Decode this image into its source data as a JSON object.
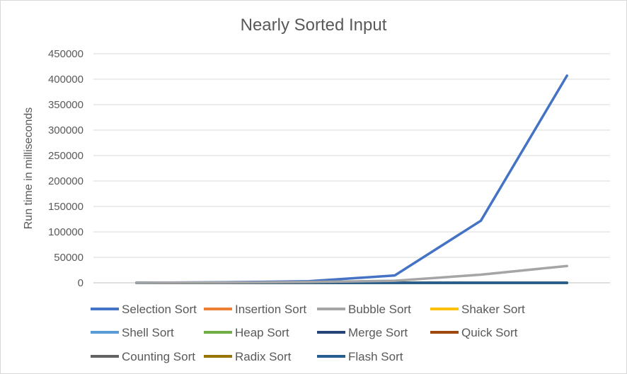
{
  "chart_data": {
    "type": "line",
    "title": "Nearly Sorted Input",
    "xlabel": "",
    "ylabel": "Run time in milliseconds",
    "ylim": [
      0,
      450000
    ],
    "yticks": [
      0,
      50000,
      100000,
      150000,
      200000,
      250000,
      300000,
      350000,
      400000,
      450000
    ],
    "categories": [
      "",
      "",
      "",
      "",
      "",
      ""
    ],
    "grid": true,
    "legend_position": "bottom",
    "series": [
      {
        "name": "Selection Sort",
        "color": "#4472c4",
        "values": [
          0,
          1000,
          3000,
          14500,
          122000,
          407000
        ]
      },
      {
        "name": "Insertion Sort",
        "color": "#ed7d31",
        "values": [
          0,
          0,
          0,
          0,
          0,
          0
        ]
      },
      {
        "name": "Bubble Sort",
        "color": "#a5a5a5",
        "values": [
          0,
          500,
          1500,
          4000,
          16000,
          33000
        ]
      },
      {
        "name": "Shaker Sort",
        "color": "#ffc000",
        "values": [
          0,
          0,
          0,
          0,
          0,
          0
        ]
      },
      {
        "name": "Shell Sort",
        "color": "#5b9bd5",
        "values": [
          0,
          0,
          0,
          0,
          0,
          0
        ]
      },
      {
        "name": "Heap Sort",
        "color": "#70ad47",
        "values": [
          0,
          0,
          0,
          0,
          0,
          0
        ]
      },
      {
        "name": "Merge Sort",
        "color": "#264478",
        "values": [
          0,
          0,
          0,
          0,
          0,
          0
        ]
      },
      {
        "name": "Quick Sort",
        "color": "#9e480e",
        "values": [
          0,
          0,
          0,
          0,
          0,
          0
        ]
      },
      {
        "name": "Counting Sort",
        "color": "#636363",
        "values": [
          0,
          0,
          0,
          0,
          0,
          0
        ]
      },
      {
        "name": "Radix Sort",
        "color": "#997300",
        "values": [
          0,
          0,
          0,
          0,
          0,
          0
        ]
      },
      {
        "name": "Flash Sort",
        "color": "#255e91",
        "values": [
          0,
          0,
          0,
          0,
          0,
          0
        ]
      }
    ]
  }
}
